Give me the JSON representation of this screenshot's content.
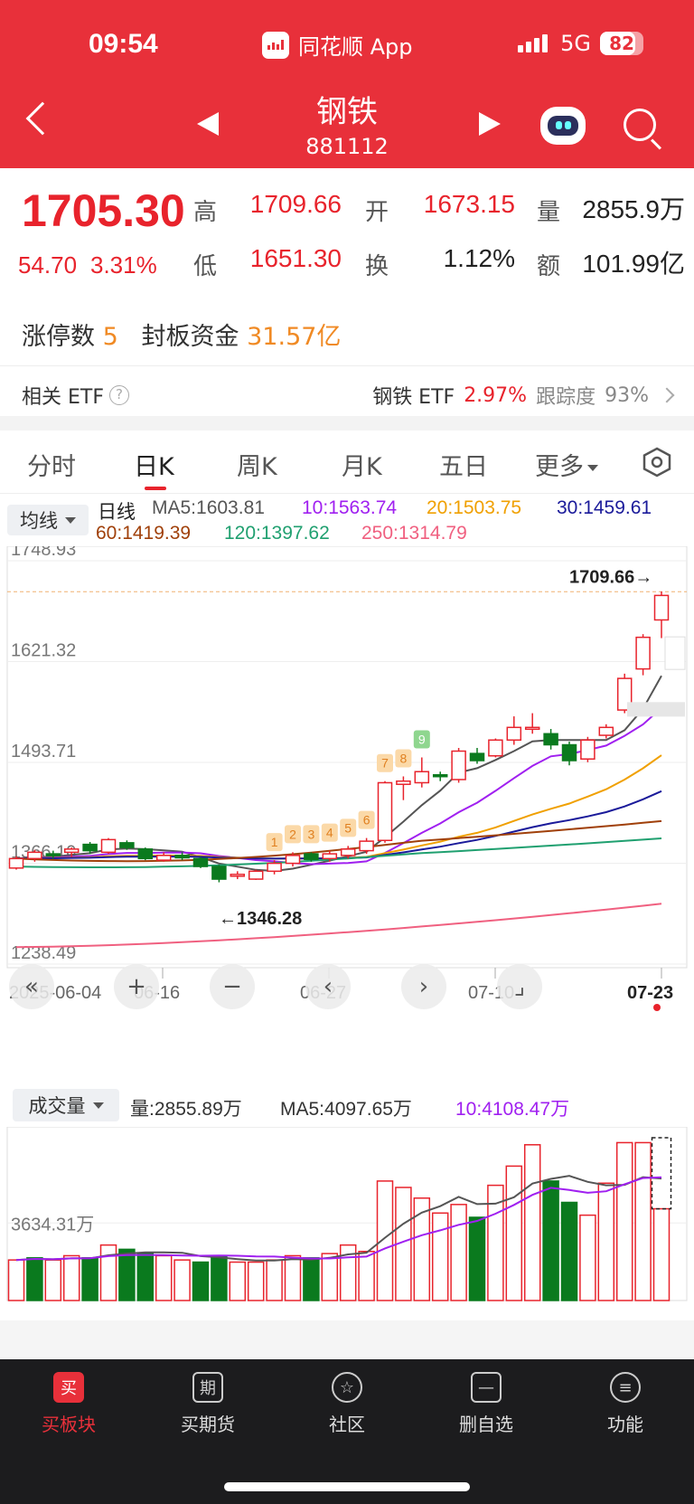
{
  "status": {
    "time": "09:54",
    "app_name": "同花顺 App",
    "network": "5G",
    "battery": "82"
  },
  "nav": {
    "title": "钢铁",
    "code": "881112"
  },
  "quote": {
    "price": "1705.30",
    "change": "54.70",
    "change_pct": "3.31%",
    "high_label": "高",
    "high": "1709.66",
    "open_label": "开",
    "open": "1673.15",
    "volume_label": "量",
    "volume": "2855.9万",
    "low_label": "低",
    "low": "1651.30",
    "turnover_label": "换",
    "turnover": "1.12%",
    "amount_label": "额",
    "amount": "101.99亿",
    "limit_up_label": "涨停数",
    "limit_up_count": "5",
    "seal_label": "封板资金",
    "seal_amount": "31.57亿"
  },
  "etf": {
    "label": "相关 ETF",
    "name": "钢铁 ETF",
    "pct": "2.97%",
    "track_label": "跟踪度",
    "track_value": "93%"
  },
  "tabs": [
    "分时",
    "日K",
    "周K",
    "月K",
    "五日",
    "更多"
  ],
  "ma": {
    "button": "均线",
    "daily_label": "日线",
    "ma5": "MA5:1603.81",
    "ma10": "10:1563.74",
    "ma20": "20:1503.75",
    "ma30": "30:1459.61",
    "ma60": "60:1419.39",
    "ma120": "120:1397.62",
    "ma250": "250:1314.79",
    "colors": {
      "ma5": "#555555",
      "ma10": "#a020f0",
      "ma20": "#f0a000",
      "ma30": "#1a1a9a",
      "ma60": "#a0400a",
      "ma120": "#20a070",
      "ma250": "#f06080"
    }
  },
  "kline": {
    "y_labels": [
      "1748.93",
      "1621.32",
      "1493.71",
      "1366.10",
      "1238.49"
    ],
    "x_labels": [
      "2025-06-04",
      "06-16",
      "06-27",
      "07-10",
      "07-23"
    ],
    "high_marker": "1709.66→",
    "low_marker": "←1346.28",
    "signals": [
      "1",
      "2",
      "3",
      "4",
      "5",
      "6",
      "7",
      "8",
      "9"
    ],
    "candles": [
      {
        "o": 1360,
        "c": 1372,
        "h": 1375,
        "l": 1358
      },
      {
        "o": 1372,
        "c": 1380,
        "h": 1383,
        "l": 1368
      },
      {
        "o": 1378,
        "c": 1376,
        "h": 1382,
        "l": 1372
      },
      {
        "o": 1380,
        "c": 1384,
        "h": 1386,
        "l": 1374
      },
      {
        "o": 1390,
        "c": 1382,
        "h": 1393,
        "l": 1378
      },
      {
        "o": 1380,
        "c": 1396,
        "h": 1398,
        "l": 1378
      },
      {
        "o": 1392,
        "c": 1386,
        "h": 1395,
        "l": 1383
      },
      {
        "o": 1384,
        "c": 1372,
        "h": 1386,
        "l": 1370
      },
      {
        "o": 1370,
        "c": 1376,
        "h": 1380,
        "l": 1368
      },
      {
        "o": 1376,
        "c": 1373,
        "h": 1380,
        "l": 1370
      },
      {
        "o": 1372,
        "c": 1362,
        "h": 1374,
        "l": 1360
      },
      {
        "o": 1362,
        "c": 1346,
        "h": 1364,
        "l": 1342
      },
      {
        "o": 1350,
        "c": 1352,
        "h": 1356,
        "l": 1346
      },
      {
        "o": 1346,
        "c": 1356,
        "h": 1358,
        "l": 1345
      },
      {
        "o": 1356,
        "c": 1366,
        "h": 1370,
        "l": 1352
      },
      {
        "o": 1366,
        "c": 1376,
        "h": 1380,
        "l": 1362
      },
      {
        "o": 1378,
        "c": 1371,
        "h": 1380,
        "l": 1368
      },
      {
        "o": 1372,
        "c": 1378,
        "h": 1382,
        "l": 1368
      },
      {
        "o": 1376,
        "c": 1384,
        "h": 1388,
        "l": 1372
      },
      {
        "o": 1382,
        "c": 1394,
        "h": 1398,
        "l": 1378
      },
      {
        "o": 1395,
        "c": 1468,
        "h": 1470,
        "l": 1392
      },
      {
        "o": 1466,
        "c": 1470,
        "h": 1476,
        "l": 1446
      },
      {
        "o": 1468,
        "c": 1482,
        "h": 1500,
        "l": 1462
      },
      {
        "o": 1478,
        "c": 1476,
        "h": 1482,
        "l": 1470
      },
      {
        "o": 1472,
        "c": 1508,
        "h": 1512,
        "l": 1468
      },
      {
        "o": 1505,
        "c": 1496,
        "h": 1512,
        "l": 1492
      },
      {
        "o": 1502,
        "c": 1522,
        "h": 1524,
        "l": 1500
      },
      {
        "o": 1522,
        "c": 1538,
        "h": 1552,
        "l": 1516
      },
      {
        "o": 1536,
        "c": 1538,
        "h": 1556,
        "l": 1530
      },
      {
        "o": 1530,
        "c": 1516,
        "h": 1536,
        "l": 1510
      },
      {
        "o": 1516,
        "c": 1496,
        "h": 1520,
        "l": 1490
      },
      {
        "o": 1498,
        "c": 1522,
        "h": 1526,
        "l": 1494
      },
      {
        "o": 1528,
        "c": 1538,
        "h": 1542,
        "l": 1524
      },
      {
        "o": 1560,
        "c": 1600,
        "h": 1606,
        "l": 1556
      },
      {
        "o": 1612,
        "c": 1652,
        "h": 1656,
        "l": 1604
      },
      {
        "o": 1674,
        "c": 1705,
        "h": 1710,
        "l": 1651
      }
    ]
  },
  "volume": {
    "button": "成交量",
    "vol_label": "量:2855.89万",
    "ma5_label": "MA5:4097.65万",
    "ma10_label": "10:4108.47万",
    "y_label": "3634.31万",
    "bars": [
      1.9,
      2.0,
      1.9,
      2.1,
      2.0,
      2.6,
      2.4,
      2.2,
      2.1,
      1.9,
      1.8,
      2.1,
      1.8,
      1.8,
      1.9,
      2.1,
      2.0,
      2.2,
      2.6,
      2.3,
      5.6,
      5.3,
      4.8,
      4.1,
      4.5,
      3.9,
      5.4,
      6.3,
      7.3,
      5.6,
      4.6,
      4.0,
      5.5,
      7.4,
      7.4,
      4.3
    ],
    "colors": [
      "r",
      "g",
      "r",
      "r",
      "g",
      "r",
      "g",
      "g",
      "r",
      "r",
      "g",
      "g",
      "r",
      "r",
      "r",
      "r",
      "g",
      "r",
      "r",
      "r",
      "r",
      "r",
      "r",
      "r",
      "r",
      "g",
      "r",
      "r",
      "r",
      "g",
      "g",
      "r",
      "r",
      "r",
      "r",
      "r"
    ]
  },
  "bottom_nav": [
    {
      "icon": "买",
      "label": "买板块"
    },
    {
      "icon": "期",
      "label": "买期货"
    },
    {
      "icon": "☆",
      "label": "社区"
    },
    {
      "icon": "—",
      "label": "删自选"
    },
    {
      "icon": "≡",
      "label": "功能"
    }
  ]
}
